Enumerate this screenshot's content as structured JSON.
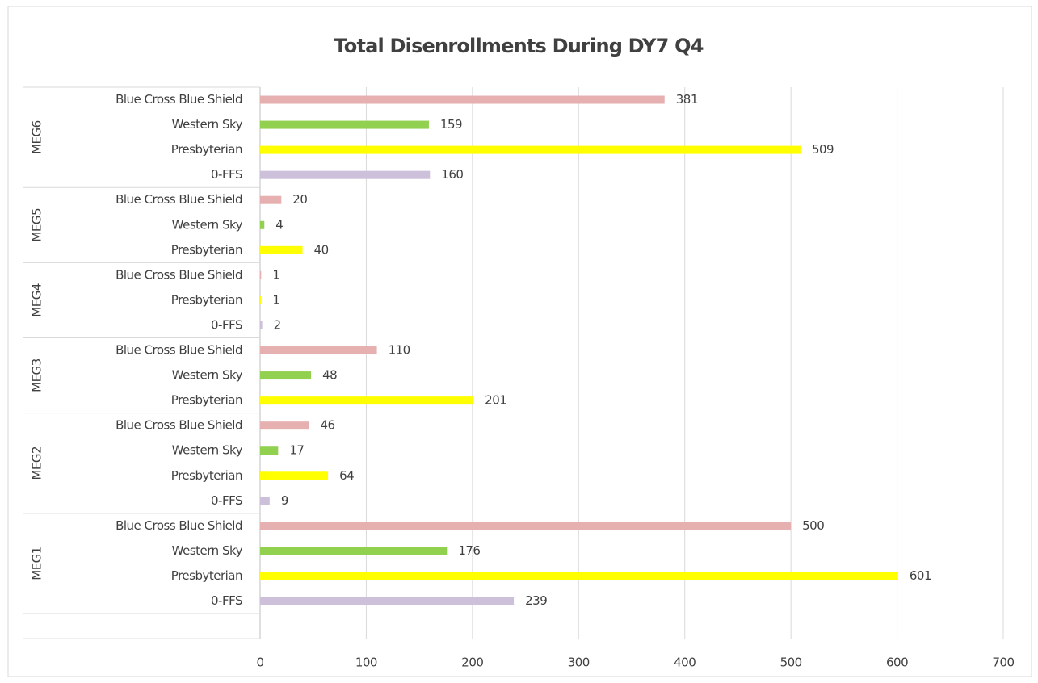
{
  "chart_data": {
    "type": "bar",
    "orientation": "horizontal",
    "title": "Total Disenrollments During DY7 Q4",
    "groups": [
      {
        "name": "MEG6",
        "categories": [
          "Blue Cross Blue Shield",
          "Western Sky",
          "Presbyterian",
          "0-FFS"
        ],
        "values": [
          381,
          159,
          509,
          160
        ],
        "colors": [
          "#e6b0b0",
          "#92d050",
          "#ffff00",
          "#ccc0da"
        ]
      },
      {
        "name": "MEG5",
        "categories": [
          "Blue Cross Blue Shield",
          "Western Sky",
          "Presbyterian"
        ],
        "values": [
          20,
          4,
          40
        ],
        "colors": [
          "#e6b0b0",
          "#92d050",
          "#ffff00"
        ]
      },
      {
        "name": "MEG4",
        "categories": [
          "Blue Cross Blue Shield",
          "Presbyterian",
          "0-FFS"
        ],
        "values": [
          1,
          1,
          2
        ],
        "colors": [
          "#e6b0b0",
          "#ffff00",
          "#ccc0da"
        ]
      },
      {
        "name": "MEG3",
        "categories": [
          "Blue Cross Blue Shield",
          "Western Sky",
          "Presbyterian"
        ],
        "values": [
          110,
          48,
          201
        ],
        "colors": [
          "#e6b0b0",
          "#92d050",
          "#ffff00"
        ]
      },
      {
        "name": "MEG2",
        "categories": [
          "Blue Cross Blue Shield",
          "Western Sky",
          "Presbyterian",
          "0-FFS"
        ],
        "values": [
          46,
          17,
          64,
          9
        ],
        "colors": [
          "#e6b0b0",
          "#92d050",
          "#ffff00",
          "#ccc0da"
        ]
      },
      {
        "name": "MEG1",
        "categories": [
          "Blue Cross Blue Shield",
          "Western Sky",
          "Presbyterian",
          "0-FFS"
        ],
        "values": [
          500,
          176,
          601,
          239
        ],
        "colors": [
          "#e6b0b0",
          "#92d050",
          "#ffff00",
          "#ccc0da"
        ]
      }
    ],
    "xlim": [
      0,
      700
    ],
    "xticks": [
      0,
      100,
      200,
      300,
      400,
      500,
      600,
      700
    ],
    "grid": true
  }
}
